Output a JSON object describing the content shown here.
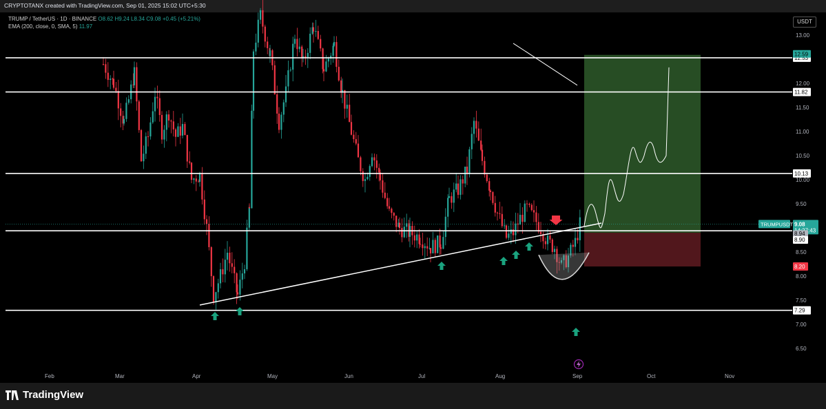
{
  "header": {
    "author_line": "CRYPTOTANX created with TradingView.com, Sep 01, 2025 15:02 UTC+5:30"
  },
  "legend": {
    "symbol_line": "TRUMP / TetherUS · 1D · BINANCE",
    "ohlc": "O8.62 H9.24 L8.34 C9.08 +0.45 (+5.21%)",
    "ema_line": "EMA (200, close, 0, SMA, 5)",
    "ema_value": "11.97"
  },
  "currency_button": "USDT",
  "brand": "TradingView",
  "chart_data": {
    "type": "candlestick",
    "symbol": "TRUMPUSDT",
    "ylim": [
      6.2,
      13.4
    ],
    "y_ticks": [
      6.5,
      7.0,
      7.5,
      8.0,
      8.5,
      9.0,
      9.5,
      10.0,
      10.5,
      11.0,
      11.5,
      12.0,
      12.5,
      13.0
    ],
    "y_tick_labels": [
      "6.50",
      "7.00",
      "7.50",
      "8.00",
      "8.50",
      "9.00",
      "9.50",
      "10.00",
      "10.50",
      "11.00",
      "11.50",
      "12.00",
      "12.50",
      "13.00"
    ],
    "x_labels": [
      "Feb",
      "Mar",
      "Apr",
      "May",
      "Jun",
      "Jul",
      "Aug",
      "Sep",
      "Oct",
      "Nov"
    ],
    "horizontal_levels": [
      {
        "value": 12.53,
        "label": "12.53"
      },
      {
        "value": 11.82,
        "label": "11.82"
      },
      {
        "value": 10.13,
        "label": "10.13"
      },
      {
        "value": 8.94,
        "label": "8.94"
      },
      {
        "value": 7.29,
        "label": "7.29"
      }
    ],
    "price_labels": [
      {
        "value": 12.59,
        "label": "12.59",
        "color": "#26a69a"
      },
      {
        "value": 9.08,
        "label": "9.08",
        "sub": "14:27:43",
        "color": "#26a69a"
      },
      {
        "value": 8.94,
        "label": "8.94",
        "color": "#b2b5be"
      },
      {
        "value": 8.9,
        "label": "8.90",
        "color": "#ffffff"
      },
      {
        "value": 8.2,
        "label": "8.20",
        "color": "#f23645"
      }
    ],
    "current_price_tag": "TRUMPUSDT",
    "position": {
      "entry": 8.9,
      "target": 12.59,
      "stop": 8.2
    },
    "trendline": {
      "from": [
        "Apr",
        7.4
      ],
      "to": [
        "Sep",
        9.0
      ]
    },
    "annotations": {
      "green_arrows": 8,
      "red_arrows": 1
    },
    "colors": {
      "up": "#26a69a",
      "down": "#f23645",
      "target_zone": "#2e5a2a",
      "stop_zone": "#5a1a1f"
    }
  }
}
